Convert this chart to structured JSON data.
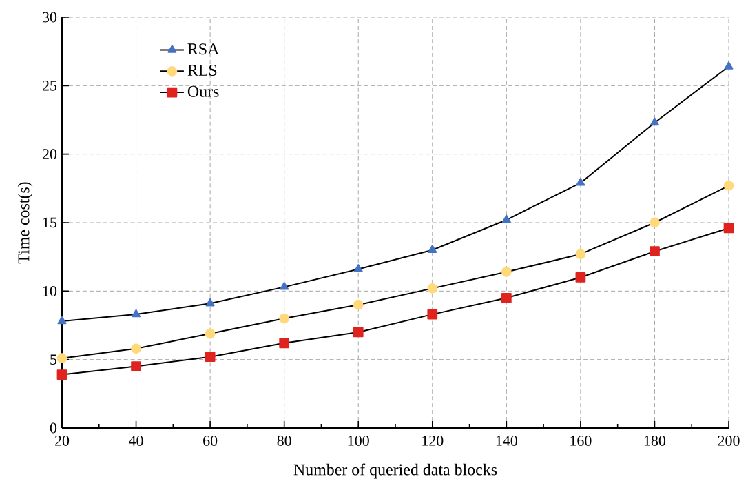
{
  "chart_data": {
    "type": "line",
    "xlabel": "Number of queried data blocks",
    "ylabel": "Time cost(s)",
    "x": [
      20,
      40,
      60,
      80,
      100,
      120,
      140,
      160,
      180,
      200
    ],
    "series": [
      {
        "name": "RSA",
        "color": "#4472c4",
        "marker": "triangle",
        "values": [
          7.8,
          8.3,
          9.1,
          10.3,
          11.6,
          13.0,
          15.2,
          17.9,
          22.3,
          26.4
        ]
      },
      {
        "name": "RLS",
        "color": "#ffd97a",
        "marker": "circle",
        "values": [
          5.1,
          5.8,
          6.9,
          8.0,
          9.0,
          10.2,
          11.4,
          12.7,
          15.0,
          17.7
        ]
      },
      {
        "name": "Ours",
        "color": "#e0231e",
        "marker": "square",
        "values": [
          3.9,
          4.5,
          5.2,
          6.2,
          7.0,
          8.3,
          9.5,
          11.0,
          12.9,
          14.6
        ]
      }
    ],
    "xlim": [
      20,
      200
    ],
    "ylim": [
      0,
      30
    ],
    "xticks": [
      20,
      40,
      60,
      80,
      100,
      120,
      140,
      160,
      180,
      200
    ],
    "yticks": [
      0,
      5,
      10,
      15,
      20,
      25,
      30
    ],
    "grid": true,
    "legend": "top left",
    "line_style": "solid"
  }
}
